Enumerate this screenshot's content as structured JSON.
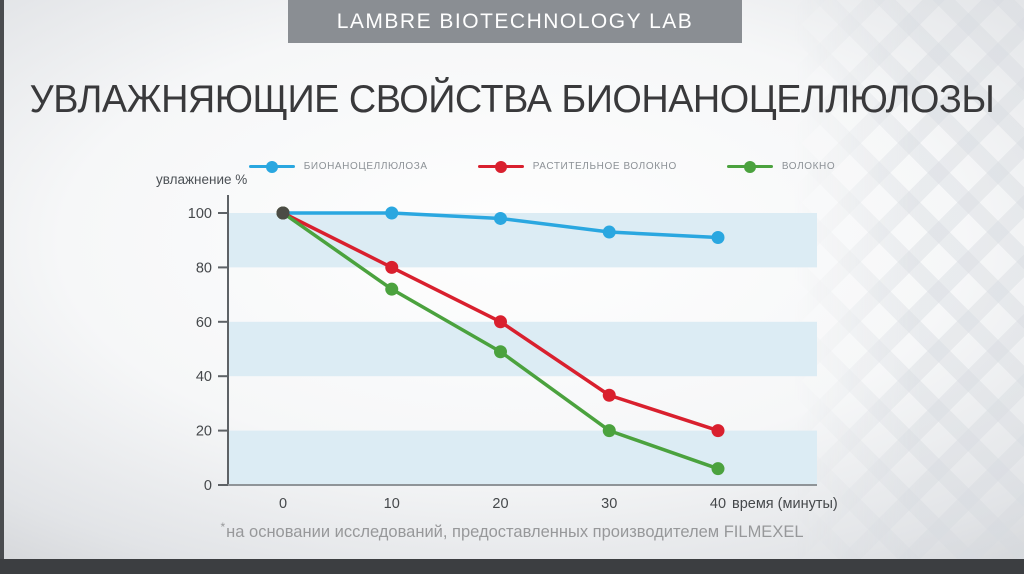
{
  "header": {
    "lab_banner": "LAMBRE BIOTECHNOLOGY LAB",
    "banner_bg": "#8a8e93"
  },
  "title": "УВЛАЖНЯЮЩИЕ СВОЙСТВА БИОНАНОЦЕЛЛЮЛОЗЫ",
  "footnote": {
    "marker": "*",
    "text": "на основании исследований, предоставленных производителем FILMEXEL"
  },
  "chart_data": {
    "type": "line",
    "title": "",
    "ylabel": "увлажнение %",
    "xlabel": "время (минуты)",
    "x": [
      0,
      10,
      20,
      30,
      40
    ],
    "x_tick_labels": [
      "0",
      "10",
      "20",
      "30",
      "40"
    ],
    "y_ticks": [
      100,
      80,
      60,
      40,
      20,
      0
    ],
    "ylim": [
      0,
      100
    ],
    "grid": "alternating horizontal bands, 20 units tall",
    "band_color": "#dcecf4",
    "legend_position": "top",
    "axis_color": "#5e6266",
    "x_axis_color": "#8f9498",
    "tick_label_color": "#45484b",
    "overlap_dot_color": "#4b4b45",
    "series": [
      {
        "name": "БИОНАНОЦЕЛЛЮЛОЗА",
        "color": "#2aa7e0",
        "values": [
          100,
          100,
          98,
          93,
          91
        ]
      },
      {
        "name": "РАСТИТЕЛЬНОЕ ВОЛОКНО",
        "color": "#d9202e",
        "values": [
          100,
          80,
          60,
          33,
          20
        ]
      },
      {
        "name": "ВОЛОКНО",
        "color": "#4ba23e",
        "values": [
          100,
          72,
          49,
          20,
          6
        ]
      }
    ]
  }
}
